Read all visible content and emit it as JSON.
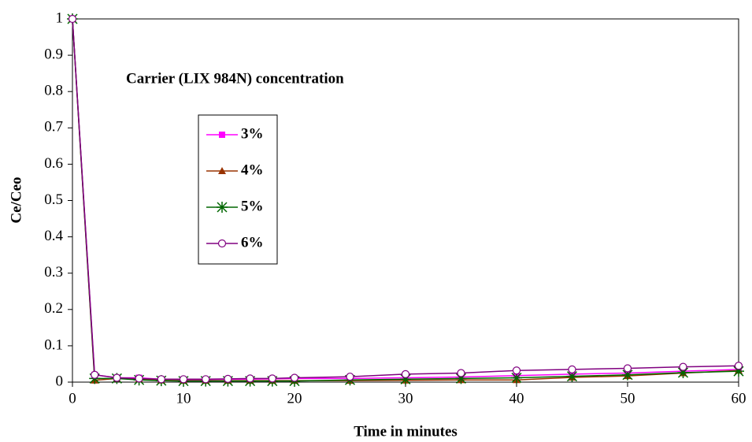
{
  "chart_data": {
    "type": "line",
    "annotation": "Carrier (LIX 984N) concentration",
    "xlabel": "Time in minutes",
    "ylabel": "Ce/Ceo",
    "x": [
      0,
      2,
      4,
      6,
      8,
      10,
      12,
      14,
      16,
      18,
      20,
      25,
      30,
      35,
      40,
      45,
      50,
      55,
      60
    ],
    "series": [
      {
        "name": "3%",
        "color": "#ff00ff",
        "marker": "square",
        "values": [
          1,
          0.02,
          0.012,
          0.012,
          0.008,
          0.007,
          0.007,
          0.008,
          0.008,
          0.009,
          0.01,
          0.01,
          0.012,
          0.014,
          0.018,
          0.022,
          0.025,
          0.03,
          0.035
        ]
      },
      {
        "name": "4%",
        "color": "#993300",
        "marker": "triangle",
        "values": [
          1,
          0.005,
          0.01,
          0.008,
          0.005,
          0.004,
          0.004,
          0.004,
          0.004,
          0.004,
          0.004,
          0.004,
          0.005,
          0.006,
          0.006,
          0.013,
          0.017,
          0.025,
          0.032
        ]
      },
      {
        "name": "5%",
        "color": "#006600",
        "marker": "star",
        "values": [
          1,
          0.01,
          0.01,
          0.006,
          0.004,
          0.003,
          0.003,
          0.003,
          0.003,
          0.003,
          0.003,
          0.006,
          0.008,
          0.01,
          0.012,
          0.016,
          0.02,
          0.026,
          0.03
        ]
      },
      {
        "name": "6%",
        "color": "#800080",
        "marker": "circle",
        "values": [
          1,
          0.02,
          0.012,
          0.01,
          0.008,
          0.008,
          0.008,
          0.009,
          0.01,
          0.01,
          0.012,
          0.015,
          0.022,
          0.025,
          0.032,
          0.035,
          0.038,
          0.042,
          0.045
        ]
      }
    ],
    "xlim": [
      0,
      60
    ],
    "xticks": [
      0,
      10,
      20,
      30,
      40,
      50,
      60
    ],
    "ylim": [
      0,
      1
    ],
    "yticks": [
      0,
      0.1,
      0.2,
      0.3,
      0.4,
      0.5,
      0.6,
      0.7,
      0.8,
      0.9,
      1
    ]
  }
}
